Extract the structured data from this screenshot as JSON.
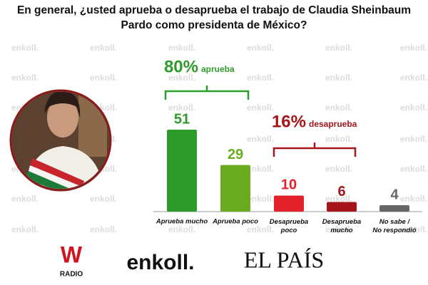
{
  "chart_data": {
    "type": "bar",
    "title": "En general, ¿usted aprueba o desaprueba el trabajo de Claudia Sheinbaum Pardo como presidenta de México?",
    "categories": [
      "Aprueba mucho",
      "Aprueba poco",
      "Desaprueba poco",
      "Desaprueba mucho",
      "No sabe / No respondió"
    ],
    "values": [
      51,
      29,
      10,
      6,
      4
    ],
    "colors": [
      "#2f9a2c",
      "#6aab1f",
      "#e3222b",
      "#a5151c",
      "#666666"
    ],
    "annotations": [
      {
        "text": "80%",
        "label": "aprueba",
        "color": "#2f9a2c"
      },
      {
        "text": "16%",
        "label": "desaprueba",
        "color": "#a5151c"
      }
    ],
    "watermark": "enkoll.",
    "logos": {
      "radio_mark": "W",
      "radio": "RADIO",
      "pollster": "enkoll.",
      "newspaper": "EL PAÍS"
    }
  }
}
